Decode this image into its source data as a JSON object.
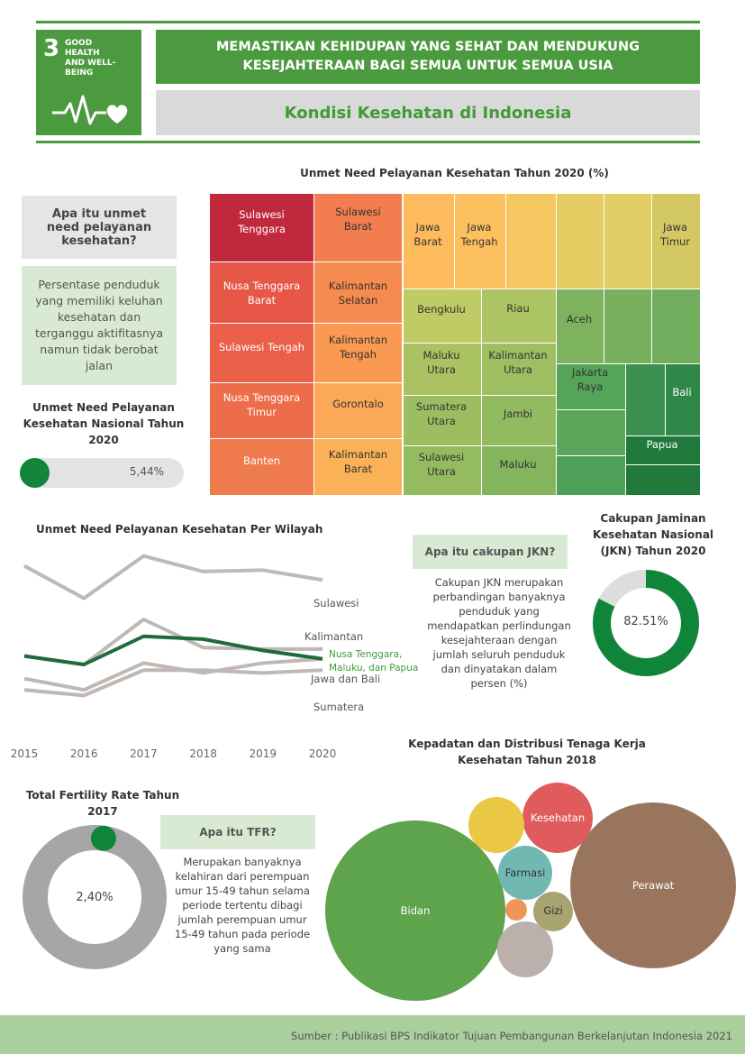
{
  "header": {
    "sdg_number": "3",
    "sdg_name": "GOOD HEALTH AND WELL-BEING",
    "title": "MEMASTIKAN KEHIDUPAN YANG SEHAT DAN MENDUKUNG KESEJAHTERAAN BAGI SEMUA UNTUK SEMUA USIA",
    "subtitle": "Kondisi Kesehatan di Indonesia"
  },
  "unmet_info": {
    "question": "Apa itu unmet need pelayanan kesehatan?",
    "answer": "Persentase penduduk yang memiliki keluhan kesehatan dan terganggu aktifitasnya namun tidak berobat jalan"
  },
  "national": {
    "title": "Unmet Need Pelayanan Kesehatan Nasional Tahun 2020",
    "value_label": "5,44%"
  },
  "jkn_info": {
    "question": "Apa itu cakupan JKN?",
    "answer": "Cakupan JKN merupakan perbandingan banyaknya penduduk yang mendapatkan perlindungan kesejahteraan dengan jumlah seluruh penduduk dan dinyatakan dalam persen (%)"
  },
  "tfr_info": {
    "question": "Apa itu TFR?",
    "answer": "Merupakan banyaknya kelahiran dari perempuan umur 15-49 tahun selama periode tertentu dibagi jumlah perempuan umur 15-49 tahun pada periode yang sama"
  },
  "footer": {
    "source": "Sumber : Publikasi BPS Indikator Tujuan Pembangunan Berkelanjutan Indonesia 2021"
  },
  "chart_data": [
    {
      "type": "treemap",
      "title": "Unmet Need Pelayanan Kesehatan Tahun 2020 (%)",
      "color_scale": [
        "#c0283c",
        "#f0824e",
        "#fdb85c",
        "#d8cf62",
        "#8cbf62",
        "#46a054",
        "#1e7a3a"
      ],
      "labels": [
        "Sulawesi Tenggara",
        "Sulawesi Barat",
        "Nusa Tenggara Barat",
        "Kalimantan Selatan",
        "Sulawesi Tengah",
        "Kalimantan Tengah",
        "Nusa Tenggara Timur",
        "Gorontalo",
        "Banten",
        "Kalimantan Barat",
        "Jawa Barat",
        "Jawa Tengah",
        "Jawa Timur",
        "Bengkulu",
        "Riau",
        "Aceh",
        "Maluku Utara",
        "Kalimantan Utara",
        "Jakarta Raya",
        "Bali",
        "Sumatera Utara",
        "Jambi",
        "Papua",
        "Sulawesi Utara",
        "Maluku"
      ]
    },
    {
      "type": "line",
      "title": "Unmet Need Pelayanan Kesehatan Per Wilayah",
      "x": [
        "2015",
        "2016",
        "2017",
        "2018",
        "2019",
        "2020"
      ],
      "y_range": [
        3,
        9.4
      ],
      "series": [
        {
          "name": "Sulawesi",
          "values": [
            8.9,
            7.75,
            9.25,
            8.7,
            8.75,
            8.4
          ],
          "color": "#bfb8b4"
        },
        {
          "name": "Kalimantan",
          "values": [
            5.7,
            5.4,
            7.0,
            6.0,
            5.95,
            5.95
          ],
          "color": "#bfb8b4"
        },
        {
          "name": "Nusa Tenggara, Maluku, dan Papua",
          "values": [
            5.7,
            5.4,
            6.4,
            6.3,
            5.9,
            5.6
          ],
          "color": "#1f6b3c"
        },
        {
          "name": "Jawa dan Bali",
          "values": [
            4.9,
            4.5,
            5.45,
            5.1,
            5.45,
            5.6
          ],
          "color": "#bfb8b4"
        },
        {
          "name": "Sumatera",
          "values": [
            4.5,
            4.3,
            5.2,
            5.2,
            5.1,
            5.2
          ],
          "color": "#bfb8b4"
        }
      ]
    },
    {
      "type": "donut",
      "title": "Cakupan Jaminan Kesehatan Nasional (JKN) Tahun 2020",
      "value": 82.51,
      "label": "82.51%",
      "colors": [
        "#10853a",
        "#dddddd"
      ]
    },
    {
      "type": "bubble",
      "title": "Kepadatan dan Distribusi Tenaga Kerja Kesehatan Tahun 2018",
      "bubbles": [
        {
          "name": "Perawat",
          "label": "Perawat",
          "color": "#9a755d"
        },
        {
          "name": "Bidan",
          "label": "Bidan",
          "color": "#5ea44c"
        },
        {
          "name": "Kesehatan",
          "label": "Kesehatan",
          "color": "#e05c5c"
        },
        {
          "name": "Farmasi",
          "label": "Farmasi",
          "color": "#72b8b2"
        },
        {
          "name": "Gizi",
          "label": "Gizi",
          "color": "#a8a36f"
        },
        {
          "name": "",
          "label": "",
          "color": "#eac843"
        },
        {
          "name": "",
          "label": "",
          "color": "#bbb0ac"
        },
        {
          "name": "",
          "label": "",
          "color": "#f0955a"
        }
      ]
    },
    {
      "type": "donut",
      "title": "Total Fertility Rate Tahun 2017",
      "value": 2.4,
      "label": "2,40%",
      "colors": [
        "#10853a",
        "#a6a6a6"
      ]
    }
  ]
}
